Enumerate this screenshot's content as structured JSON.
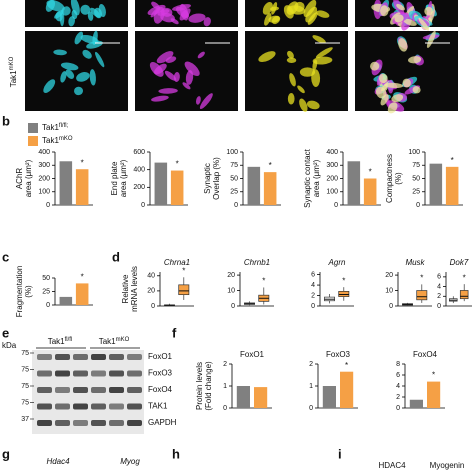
{
  "figure": {
    "panel_labels": [
      "b",
      "c",
      "d",
      "e",
      "f",
      "g",
      "h",
      "i"
    ],
    "image_row_label": {
      "text": "Tak1",
      "sup": "mKO"
    },
    "legend": [
      {
        "text": "Tak1",
        "sup": "fl/fl;",
        "color": "#808080"
      },
      {
        "text": "Tak1",
        "sup": "mKO",
        "color": "#f5a045"
      }
    ],
    "d_ylabel": [
      "Relative",
      "mRNA levels"
    ],
    "f_ylabel": [
      "Protein levels",
      "(Fold change)"
    ],
    "blot": {
      "unit": "kDa",
      "groups": [
        {
          "text": "Tak1",
          "sup": "fl/fl"
        },
        {
          "text": "Tak1",
          "sup": "mKO"
        }
      ],
      "rows": [
        {
          "label": "FoxO1",
          "kda": 75
        },
        {
          "label": "FoxO3",
          "kda": 75
        },
        {
          "label": "FoxO4",
          "kda": 75
        },
        {
          "label": "TAK1",
          "kda": 75
        },
        {
          "label": "GAPDH",
          "kda": 37
        }
      ]
    },
    "g_labels": [
      "Hdac4",
      "Myog"
    ],
    "i_labels": [
      "HDAC4",
      "Myogenin"
    ]
  },
  "chart_data": [
    {
      "type": "bar",
      "ylabel": [
        "AChR",
        "area (μm²)"
      ],
      "values": [
        330,
        270
      ],
      "ylim": [
        0,
        400
      ],
      "yticks": [
        0,
        100,
        200,
        300,
        400
      ],
      "annotation": "*"
    },
    {
      "type": "bar",
      "ylabel": [
        "End plate",
        "area (μm²)"
      ],
      "values": [
        480,
        390
      ],
      "ylim": [
        0,
        600
      ],
      "yticks": [
        0,
        200,
        400,
        600
      ],
      "annotation": "*"
    },
    {
      "type": "bar",
      "ylabel": [
        "Synaptic",
        "Overlap (%)"
      ],
      "values": [
        72,
        62
      ],
      "ylim": [
        0,
        100
      ],
      "yticks": [
        0,
        25,
        50,
        75,
        100
      ],
      "annotation": "*"
    },
    {
      "type": "bar",
      "ylabel": [
        "Synaptic contact",
        "area (μm²)"
      ],
      "values": [
        330,
        200
      ],
      "ylim": [
        0,
        400
      ],
      "yticks": [
        0,
        100,
        200,
        300,
        400
      ],
      "annotation": "*"
    },
    {
      "type": "bar",
      "ylabel": [
        "Compactness",
        "(%)"
      ],
      "values": [
        78,
        72
      ],
      "ylim": [
        0,
        100
      ],
      "yticks": [
        0,
        25,
        50,
        75,
        100
      ],
      "annotation": "*"
    },
    {
      "type": "bar",
      "ylabel": [
        "Fragmentation",
        "(%)"
      ],
      "values": [
        15,
        40
      ],
      "ylim": [
        0,
        50
      ],
      "yticks": [
        0,
        25,
        50
      ],
      "annotation": "*"
    },
    {
      "type": "box",
      "title": "Chrna1",
      "boxes": [
        [
          0,
          0.5,
          1,
          1.5,
          3
        ],
        [
          8,
          15,
          20,
          28,
          38
        ]
      ],
      "ylim": [
        0,
        45
      ],
      "yticks": [
        0,
        20,
        40
      ],
      "annotation": "*"
    },
    {
      "type": "box",
      "title": "Chrnb1",
      "boxes": [
        [
          0.5,
          1,
          1.5,
          2,
          3
        ],
        [
          1,
          3,
          5,
          7,
          12
        ]
      ],
      "ylim": [
        0,
        22
      ],
      "yticks": [
        0,
        10,
        20
      ],
      "annotation": "*"
    },
    {
      "type": "box",
      "title": "Agrn",
      "boxes": [
        [
          0.5,
          1,
          1.3,
          1.7,
          2.3
        ],
        [
          1,
          1.8,
          2.2,
          2.8,
          3.6
        ]
      ],
      "ylim": [
        0,
        6.5
      ],
      "yticks": [
        0,
        2,
        4,
        6
      ],
      "annotation": "*"
    },
    {
      "type": "box",
      "title": "Musk",
      "boxes": [
        [
          0.3,
          0.6,
          1,
          1.5,
          2
        ],
        [
          2,
          4,
          6,
          10,
          14
        ]
      ],
      "ylim": [
        0,
        22
      ],
      "yticks": [
        0,
        10,
        20
      ],
      "annotation": "*"
    },
    {
      "type": "box",
      "title": "Dok7",
      "boxes": [
        [
          0.6,
          1,
          1.2,
          1.5,
          2
        ],
        [
          1,
          1.5,
          2,
          3.2,
          4.5
        ]
      ],
      "ylim": [
        0,
        7
      ],
      "yticks": [
        0,
        2,
        4,
        6
      ],
      "annotation": "*"
    },
    {
      "type": "bar",
      "title": "FoxO1",
      "values": [
        1.0,
        0.95
      ],
      "ylim": [
        0,
        2
      ],
      "yticks": [
        0,
        1,
        2
      ]
    },
    {
      "type": "bar",
      "title": "FoxO3",
      "values": [
        1.0,
        1.65
      ],
      "ylim": [
        0,
        2
      ],
      "yticks": [
        0,
        1,
        2
      ],
      "annotation": "*"
    },
    {
      "type": "bar",
      "title": "FoxO4",
      "values": [
        1.5,
        4.8
      ],
      "ylim": [
        0,
        8
      ],
      "yticks": [
        0,
        2,
        4,
        6,
        8
      ],
      "annotation": "*"
    }
  ]
}
